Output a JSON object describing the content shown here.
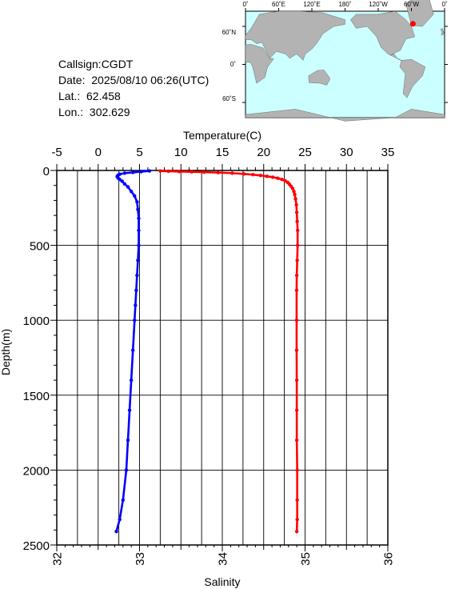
{
  "meta": {
    "callsign_line": "Callsign:CGDT",
    "date_line": "Date:  2025/08/10 06:26(UTC)",
    "lat_line": "Lat.:  62.458",
    "lon_line": "Lon.:  302.629"
  },
  "map": {
    "lon_labels": [
      "0˚",
      "60˚E",
      "120˚E",
      "180˚",
      "120˚W",
      "60˚W",
      "0˚"
    ],
    "lat_labels": [
      "60˚N",
      "0˚",
      "60˚S"
    ],
    "ocean_color": "#ccffff",
    "land_color": "#b3b3b3",
    "marker_color": "#ff0000",
    "marker": {
      "lat": 62.458,
      "lon": 302.629
    }
  },
  "chart_data": {
    "type": "line",
    "title": "",
    "xlabel_top": "Temperature(C)",
    "xlabel_bottom": "Salinity",
    "ylabel": "Depth(m)",
    "temperature_range": [
      -5,
      35
    ],
    "temperature_ticks": [
      "-5",
      "0",
      "5",
      "10",
      "15",
      "20",
      "25",
      "30",
      "35"
    ],
    "salinity_range": [
      32,
      36
    ],
    "salinity_ticks": [
      "32",
      "33",
      "34",
      "35",
      "36"
    ],
    "depth_range": [
      0,
      2500
    ],
    "depth_ticks": [
      "0",
      "500",
      "1000",
      "1500",
      "2000",
      "2500"
    ],
    "grid": true,
    "series": [
      {
        "variable": "temperature",
        "color": "#ff0000",
        "points": [
          [
            7.5,
            3
          ],
          [
            8.5,
            5
          ],
          [
            9.8,
            7
          ],
          [
            11.3,
            9
          ],
          [
            12.8,
            11
          ],
          [
            14.5,
            14
          ],
          [
            16.2,
            18
          ],
          [
            17.6,
            23
          ],
          [
            18.7,
            28
          ],
          [
            19.6,
            33
          ],
          [
            20.4,
            39
          ],
          [
            21.1,
            45
          ],
          [
            21.7,
            52
          ],
          [
            22.2,
            60
          ],
          [
            22.6,
            70
          ],
          [
            22.9,
            80
          ],
          [
            23.1,
            92
          ],
          [
            23.3,
            105
          ],
          [
            23.5,
            120
          ],
          [
            23.65,
            140
          ],
          [
            23.75,
            160
          ],
          [
            23.85,
            190
          ],
          [
            23.95,
            230
          ],
          [
            24.0,
            280
          ],
          [
            24.05,
            340
          ],
          [
            24.1,
            400
          ],
          [
            24.1,
            500
          ],
          [
            24.05,
            600
          ],
          [
            24.0,
            700
          ],
          [
            23.98,
            800
          ],
          [
            23.98,
            1000
          ],
          [
            23.98,
            1200
          ],
          [
            24.0,
            1400
          ],
          [
            24.0,
            1600
          ],
          [
            24.0,
            1800
          ],
          [
            24.05,
            2000
          ],
          [
            24.05,
            2200
          ],
          [
            24.05,
            2330
          ],
          [
            24.0,
            2410
          ]
        ]
      },
      {
        "variable": "salinity",
        "color": "#0000ff",
        "points": [
          [
            33.12,
            3
          ],
          [
            33.02,
            8
          ],
          [
            32.92,
            13
          ],
          [
            32.82,
            18
          ],
          [
            32.76,
            25
          ],
          [
            32.74,
            32
          ],
          [
            32.73,
            40
          ],
          [
            32.74,
            50
          ],
          [
            32.76,
            60
          ],
          [
            32.79,
            72
          ],
          [
            32.82,
            90
          ],
          [
            32.86,
            110
          ],
          [
            32.9,
            140
          ],
          [
            32.94,
            170
          ],
          [
            32.97,
            210
          ],
          [
            32.98,
            260
          ],
          [
            32.99,
            320
          ],
          [
            32.99,
            400
          ],
          [
            32.99,
            500
          ],
          [
            32.98,
            600
          ],
          [
            32.97,
            700
          ],
          [
            32.96,
            800
          ],
          [
            32.95,
            900
          ],
          [
            32.94,
            1000
          ],
          [
            32.92,
            1200
          ],
          [
            32.9,
            1400
          ],
          [
            32.88,
            1600
          ],
          [
            32.86,
            1800
          ],
          [
            32.84,
            2000
          ],
          [
            32.8,
            2200
          ],
          [
            32.76,
            2330
          ],
          [
            32.72,
            2410
          ]
        ]
      }
    ]
  }
}
